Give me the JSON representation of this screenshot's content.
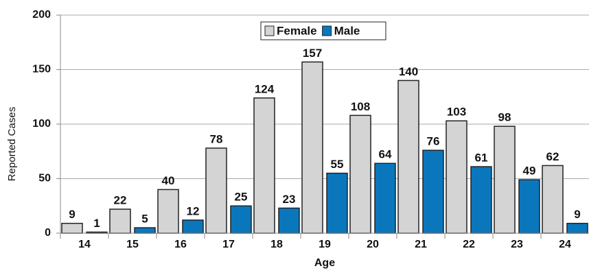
{
  "chart_data": {
    "type": "bar",
    "x_label": "Age",
    "y_label": "Reported Cases",
    "categories": [
      "14",
      "15",
      "16",
      "17",
      "18",
      "19",
      "20",
      "21",
      "22",
      "23",
      "24"
    ],
    "series": [
      {
        "name": "Female",
        "color": "#d4d4d4",
        "values": [
          9,
          22,
          40,
          78,
          124,
          157,
          108,
          140,
          103,
          98,
          62
        ]
      },
      {
        "name": "Male",
        "color": "#0a77bd",
        "values": [
          1,
          5,
          12,
          25,
          23,
          55,
          64,
          76,
          61,
          49,
          9
        ]
      }
    ],
    "ylim": [
      0,
      200
    ],
    "yticks": [
      0,
      50,
      100,
      150,
      200
    ],
    "grid": true,
    "legend": "top"
  }
}
